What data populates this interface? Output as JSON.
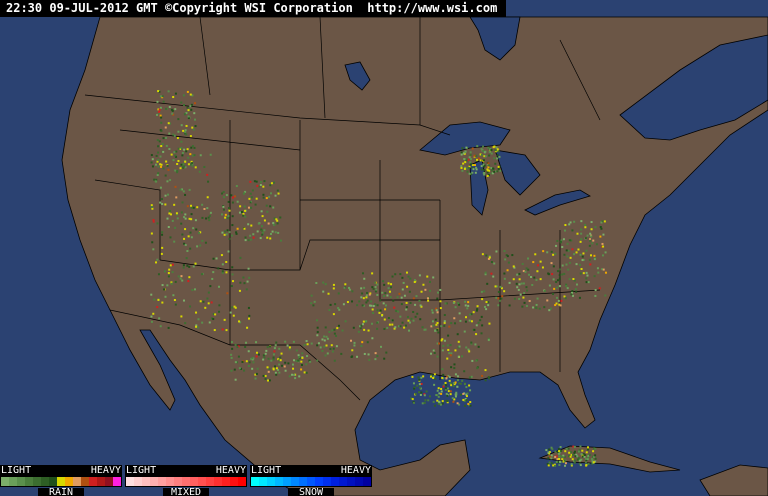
{
  "header": {
    "timestamp": "22:30 09-JUL-2012 GMT",
    "copyright": "©Copyright WSI Corporation",
    "url": "http://www.wsi.com"
  },
  "colors": {
    "ocean": "#2b4272",
    "land": "#6b5646",
    "border": "#000000"
  },
  "legend": [
    {
      "name": "RAIN",
      "light": "LIGHT",
      "heavy": "HEAVY",
      "colors": [
        "#7caf6a",
        "#6aa05a",
        "#5a904c",
        "#4a7e3c",
        "#3c6e30",
        "#2e5e24",
        "#20501a",
        "#d8d800",
        "#f0a800",
        "#e09c60",
        "#b05010",
        "#d02020",
        "#b01818",
        "#901020",
        "#ff20e0"
      ]
    },
    {
      "name": "MIXED",
      "light": "LIGHT",
      "heavy": "HEAVY",
      "colors": [
        "#ffe0e0",
        "#ffd0d0",
        "#ffc0c0",
        "#ffb0b0",
        "#ffa0a0",
        "#ff9090",
        "#ff8080",
        "#ff7070",
        "#ff6060",
        "#ff5050",
        "#ff4040",
        "#ff3030",
        "#ff2020",
        "#ff1010",
        "#ff0000"
      ]
    },
    {
      "name": "SNOW",
      "light": "LIGHT",
      "heavy": "HEAVY",
      "colors": [
        "#00ffff",
        "#00e8ff",
        "#00d0ff",
        "#00b8ff",
        "#00a0ff",
        "#0088ff",
        "#0070ff",
        "#0058ff",
        "#0040ff",
        "#0030f0",
        "#0020e0",
        "#0018d0",
        "#0010c0",
        "#0008b0",
        "#0000a0"
      ]
    }
  ]
}
